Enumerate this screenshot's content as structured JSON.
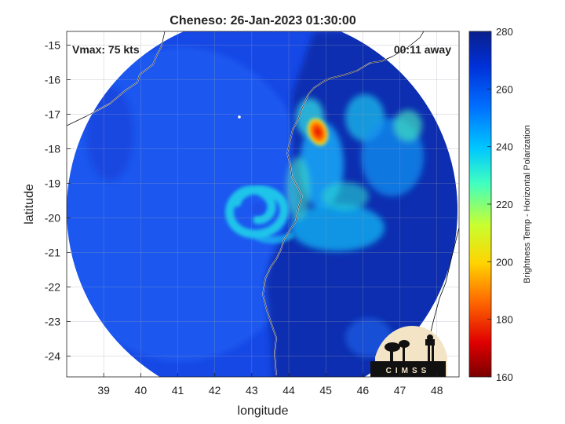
{
  "chart_data": {
    "type": "heatmap",
    "title": "Cheneso: 26-Jan-2023 01:30:00",
    "xlabel": "longitude",
    "ylabel": "latitude",
    "xlim": [
      38,
      48.6
    ],
    "ylim": [
      -24.6,
      -14.6
    ],
    "xticks": [
      39,
      40,
      41,
      42,
      43,
      44,
      45,
      46,
      47,
      48
    ],
    "yticks": [
      -15,
      -16,
      -17,
      -18,
      -19,
      -20,
      -21,
      -22,
      -23,
      -24
    ],
    "grid": true,
    "annotations": {
      "vmax": "Vmax: 75 kts",
      "time_offset": "00:11 away",
      "logo": "CIMSS"
    },
    "colorbar": {
      "label": "Brightness Temp - Horizontal Polarization",
      "range": [
        160,
        280
      ],
      "ticks": [
        280,
        260,
        240,
        220,
        200,
        180,
        160
      ],
      "colors": [
        "#7a0000",
        "#e00000",
        "#ff6a00",
        "#ffd400",
        "#c8ff30",
        "#40ffc0",
        "#00c8ff",
        "#0070ff",
        "#0030d8",
        "#0a1f8c"
      ]
    },
    "swath": {
      "center": [
        43.3,
        -19.6
      ],
      "radius_deg": 5.2
    },
    "features": [
      {
        "name": "eyewall-spiral",
        "lon": 42.9,
        "lat": -19.9,
        "tb": 242
      },
      {
        "name": "rainband-core",
        "lon": 44.65,
        "lat": -17.5,
        "tb": 182
      },
      {
        "name": "outer-band",
        "lon": 45.6,
        "lat": -18.6,
        "tb": 238
      }
    ],
    "coastline": [
      [
        38.05,
        -17.2
      ],
      [
        39.5,
        -16.5
      ],
      [
        40.6,
        -15.9
      ],
      [
        41.0,
        -15.3
      ],
      [
        41.3,
        -14.6
      ]
    ]
  }
}
